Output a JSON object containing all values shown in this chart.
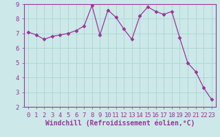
{
  "x": [
    0,
    1,
    2,
    3,
    4,
    5,
    6,
    7,
    8,
    9,
    10,
    11,
    12,
    13,
    14,
    15,
    16,
    17,
    18,
    19,
    20,
    21,
    22,
    23
  ],
  "y": [
    7.1,
    6.9,
    6.6,
    6.8,
    6.9,
    7.0,
    7.2,
    7.5,
    8.9,
    6.9,
    8.6,
    8.1,
    7.3,
    6.6,
    8.2,
    8.8,
    8.5,
    8.3,
    8.5,
    6.7,
    5.0,
    4.4,
    3.3,
    2.5
  ],
  "line_color": "#993399",
  "marker": "D",
  "marker_size": 2.5,
  "bg_color": "#cce8e8",
  "xlabel": "Windchill (Refroidissement éolien,°C)",
  "xlim": [
    -0.5,
    23.5
  ],
  "ylim": [
    2,
    9
  ],
  "yticks": [
    2,
    3,
    4,
    5,
    6,
    7,
    8,
    9
  ],
  "xticks": [
    0,
    1,
    2,
    3,
    4,
    5,
    6,
    7,
    8,
    9,
    10,
    11,
    12,
    13,
    14,
    15,
    16,
    17,
    18,
    19,
    20,
    21,
    22,
    23
  ],
  "grid_color": "#aad4d4",
  "xlabel_color": "#993399",
  "tick_color": "#993399",
  "spine_color": "#993399",
  "xlabel_fontsize": 7.0,
  "tick_fontsize": 6.5
}
